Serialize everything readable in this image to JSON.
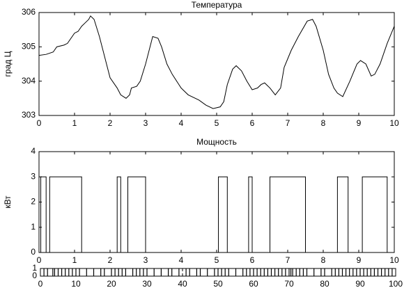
{
  "chart_data": [
    {
      "type": "line",
      "title": "Температура",
      "ylabel": "град Ц",
      "color": "#000000",
      "xlim": [
        0,
        10
      ],
      "ylim": [
        303,
        306
      ],
      "xticks": [
        0,
        1,
        2,
        3,
        4,
        5,
        6,
        7,
        8,
        9,
        10
      ],
      "yticks": [
        303,
        304,
        305,
        306
      ],
      "x": [
        0,
        0.2,
        0.4,
        0.5,
        0.7,
        0.8,
        1.0,
        1.1,
        1.2,
        1.3,
        1.4,
        1.45,
        1.55,
        1.7,
        1.8,
        1.9,
        2.0,
        2.2,
        2.3,
        2.45,
        2.55,
        2.6,
        2.75,
        2.85,
        3.0,
        3.1,
        3.2,
        3.35,
        3.45,
        3.6,
        3.75,
        4.0,
        4.2,
        4.5,
        4.7,
        4.9,
        5.1,
        5.2,
        5.3,
        5.45,
        5.55,
        5.7,
        5.85,
        6.0,
        6.15,
        6.25,
        6.35,
        6.5,
        6.65,
        6.8,
        6.9,
        7.1,
        7.3,
        7.55,
        7.7,
        7.8,
        8.0,
        8.15,
        8.3,
        8.4,
        8.55,
        8.75,
        8.95,
        9.05,
        9.2,
        9.35,
        9.45,
        9.6,
        9.8,
        10.0
      ],
      "values": [
        304.75,
        304.78,
        304.85,
        305.0,
        305.05,
        305.1,
        305.4,
        305.45,
        305.6,
        305.7,
        305.8,
        305.9,
        305.8,
        305.3,
        304.9,
        304.5,
        304.1,
        303.8,
        303.6,
        303.5,
        303.6,
        303.8,
        303.85,
        304.0,
        304.5,
        304.9,
        305.3,
        305.25,
        305.0,
        304.5,
        304.2,
        303.8,
        303.6,
        303.45,
        303.3,
        303.2,
        303.25,
        303.4,
        303.9,
        304.35,
        304.45,
        304.3,
        304.0,
        303.75,
        303.8,
        303.9,
        303.95,
        303.8,
        303.6,
        303.8,
        304.4,
        304.9,
        305.3,
        305.75,
        305.8,
        305.6,
        304.9,
        304.2,
        303.8,
        303.65,
        303.55,
        304.0,
        304.5,
        304.6,
        304.5,
        304.15,
        304.2,
        304.5,
        305.1,
        305.6
      ]
    },
    {
      "type": "line",
      "title": "Мощность",
      "ylabel": "кВт",
      "color": "#000000",
      "xlim": [
        0,
        10
      ],
      "ylim": [
        0,
        4
      ],
      "xticks": [
        0,
        1,
        2,
        3,
        4,
        5,
        6,
        7,
        8,
        9,
        10
      ],
      "yticks": [
        0,
        1,
        2,
        3,
        4
      ],
      "x": [
        0,
        0.05,
        0.05,
        0.2,
        0.2,
        0.3,
        0.3,
        1.2,
        1.2,
        2.2,
        2.2,
        2.3,
        2.3,
        2.5,
        2.5,
        3.0,
        3.0,
        5.05,
        5.05,
        5.3,
        5.3,
        5.9,
        5.9,
        6.0,
        6.0,
        6.5,
        6.5,
        7.5,
        7.5,
        8.4,
        8.4,
        8.7,
        8.7,
        9.1,
        9.1,
        9.8,
        9.8,
        10
      ],
      "values": [
        0,
        0,
        3,
        3,
        0,
        0,
        3,
        3,
        0,
        0,
        3,
        3,
        0,
        0,
        3,
        3,
        0,
        0,
        3,
        3,
        0,
        0,
        3,
        3,
        0,
        0,
        3,
        3,
        0,
        0,
        3,
        3,
        0,
        0,
        3,
        3,
        0,
        0
      ]
    },
    {
      "type": "event",
      "color": "#000000",
      "xlim": [
        0,
        100
      ],
      "ylim": [
        0,
        1
      ],
      "xticks": [
        0,
        10,
        20,
        30,
        40,
        50,
        60,
        70,
        80,
        90,
        100
      ],
      "yticks": [
        0,
        1
      ],
      "x": [
        1,
        2,
        3.5,
        4,
        5,
        6,
        7,
        8,
        9,
        10,
        11,
        13,
        15,
        17,
        18,
        20,
        21,
        22,
        23,
        24,
        26,
        27,
        28,
        29,
        30,
        32,
        34,
        36,
        37,
        39,
        41,
        42,
        44,
        45,
        47,
        49,
        50,
        51,
        52,
        53,
        55,
        57,
        58,
        59,
        60,
        61,
        62,
        63,
        64,
        65,
        66,
        67,
        68,
        69,
        70,
        70.5,
        71,
        72,
        73,
        74,
        75,
        77,
        79,
        80,
        82,
        83,
        84,
        85,
        86,
        87,
        88,
        89,
        90,
        91,
        92,
        93,
        94,
        95,
        96,
        97,
        98,
        99
      ]
    }
  ]
}
